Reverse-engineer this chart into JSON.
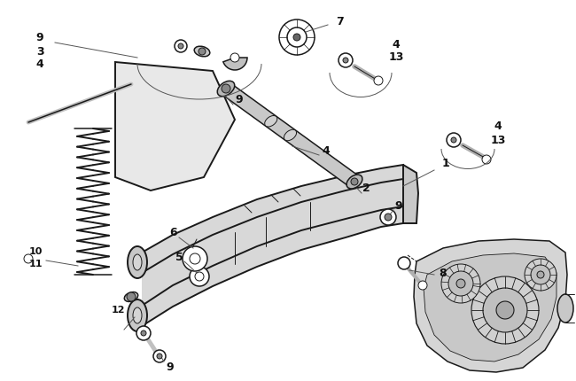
{
  "background_color": "#ffffff",
  "line_color": "#1a1a1a",
  "label_color": "#111111",
  "figsize": [
    6.5,
    4.3
  ],
  "dpi": 100,
  "label_fontsize": 9,
  "small_fontsize": 8
}
